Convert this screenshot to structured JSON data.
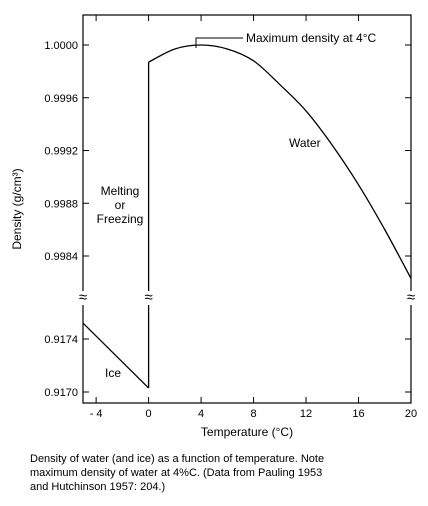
{
  "chart_data": {
    "type": "line",
    "xlabel": "Temperature (°C)",
    "ylabel": "Density (g/cm³)",
    "xlim": [
      -5,
      20
    ],
    "x_ticks": [
      {
        "value": -4,
        "label": "- 4"
      },
      {
        "value": 0,
        "label": "0"
      },
      {
        "value": 4,
        "label": "4"
      },
      {
        "value": 8,
        "label": "8"
      },
      {
        "value": 12,
        "label": "12"
      },
      {
        "value": 16,
        "label": "16"
      },
      {
        "value": 20,
        "label": "20"
      }
    ],
    "y_axis_break": true,
    "ylim_lower": [
      0.9169,
      0.9176
    ],
    "ylim_upper": [
      0.9982,
      1.0001
    ],
    "y_ticks_lower": [
      {
        "value": 0.917,
        "label": "0.9170"
      },
      {
        "value": 0.9174,
        "label": "0.9174"
      }
    ],
    "y_ticks_upper": [
      {
        "value": 0.9984,
        "label": "0.9984"
      },
      {
        "value": 0.9988,
        "label": "0.9988"
      },
      {
        "value": 0.9992,
        "label": "0.9992"
      },
      {
        "value": 0.9996,
        "label": "0.9996"
      },
      {
        "value": 1.0,
        "label": "1.0000"
      }
    ],
    "series": [
      {
        "name": "Ice",
        "x": [
          -5,
          0
        ],
        "y": [
          0.91752,
          0.91703
        ]
      },
      {
        "name": "Water",
        "x": [
          0,
          2,
          3.98,
          6,
          8,
          10,
          12,
          14,
          16,
          18,
          20
        ],
        "y": [
          0.99987,
          0.99997,
          1.0,
          0.99997,
          0.99988,
          0.9997,
          0.9995,
          0.99924,
          0.99894,
          0.9986,
          0.99823
        ]
      }
    ],
    "phase_transition_x": 0,
    "annotations": {
      "max_density": "Maximum density at 4°C",
      "water": "Water",
      "ice": "Ice",
      "melting_line1": "Melting",
      "melting_line2": "or",
      "melting_line3": "Freezing"
    },
    "break_symbol": "≈",
    "grid": false
  },
  "caption": "Density of water (and ice) as a function of temperature.  Note\nmaximum density of water at 4%C.  (Data from Pauling 1953\nand Hutchinson 1957:  204.)"
}
